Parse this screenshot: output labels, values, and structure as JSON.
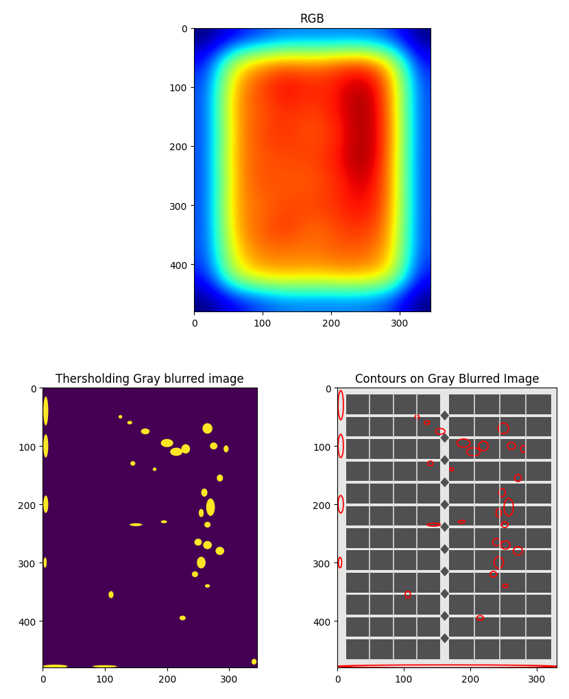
{
  "chart_data": [
    {
      "type": "heatmap",
      "title": "RGB",
      "xlim": [
        0,
        345
      ],
      "ylim": [
        480,
        0
      ],
      "xticks": [
        0,
        100,
        200,
        300
      ],
      "yticks": [
        0,
        100,
        200,
        300,
        400
      ],
      "cells": [
        [
          0.22,
          0.3,
          0.36,
          0.4,
          0.4,
          0.4,
          0.4,
          0.36,
          0.22
        ],
        [
          0.32,
          0.68,
          0.78,
          0.82,
          0.8,
          0.84,
          0.86,
          0.72,
          0.32
        ],
        [
          0.36,
          0.76,
          0.84,
          0.9,
          0.86,
          0.88,
          0.94,
          0.8,
          0.36
        ],
        [
          0.36,
          0.78,
          0.82,
          0.86,
          0.84,
          0.88,
          0.96,
          0.8,
          0.36
        ],
        [
          0.36,
          0.76,
          0.84,
          0.86,
          0.82,
          0.86,
          0.95,
          0.82,
          0.36
        ],
        [
          0.36,
          0.78,
          0.82,
          0.84,
          0.84,
          0.88,
          0.96,
          0.8,
          0.36
        ],
        [
          0.36,
          0.76,
          0.84,
          0.82,
          0.82,
          0.86,
          0.92,
          0.8,
          0.36
        ],
        [
          0.36,
          0.78,
          0.8,
          0.84,
          0.84,
          0.86,
          0.9,
          0.8,
          0.36
        ],
        [
          0.36,
          0.76,
          0.82,
          0.86,
          0.8,
          0.84,
          0.86,
          0.78,
          0.36
        ],
        [
          0.36,
          0.72,
          0.8,
          0.8,
          0.8,
          0.82,
          0.82,
          0.76,
          0.36
        ],
        [
          0.32,
          0.66,
          0.74,
          0.76,
          0.74,
          0.76,
          0.76,
          0.7,
          0.32
        ],
        [
          0.22,
          0.3,
          0.36,
          0.4,
          0.4,
          0.4,
          0.4,
          0.36,
          0.22
        ]
      ]
    },
    {
      "type": "binary_image",
      "title": "Thersholding Gray blurred image",
      "xlim": [
        0,
        345
      ],
      "ylim": [
        480,
        0
      ],
      "xticks": [
        0,
        100,
        200,
        300
      ],
      "yticks": [
        0,
        100,
        200,
        300,
        400
      ],
      "blobs": [
        [
          5,
          40,
          8,
          50
        ],
        [
          5,
          100,
          8,
          40
        ],
        [
          5,
          200,
          8,
          30
        ],
        [
          4,
          300,
          5,
          18
        ],
        [
          125,
          50,
          6,
          6
        ],
        [
          140,
          60,
          8,
          6
        ],
        [
          165,
          75,
          14,
          10
        ],
        [
          200,
          95,
          20,
          14
        ],
        [
          215,
          110,
          20,
          14
        ],
        [
          230,
          105,
          14,
          16
        ],
        [
          265,
          70,
          16,
          18
        ],
        [
          275,
          100,
          12,
          12
        ],
        [
          295,
          105,
          8,
          12
        ],
        [
          145,
          130,
          8,
          8
        ],
        [
          180,
          140,
          6,
          6
        ],
        [
          285,
          155,
          10,
          12
        ],
        [
          260,
          180,
          10,
          14
        ],
        [
          270,
          205,
          14,
          30
        ],
        [
          255,
          215,
          8,
          14
        ],
        [
          265,
          235,
          10,
          10
        ],
        [
          150,
          235,
          20,
          5
        ],
        [
          195,
          230,
          10,
          5
        ],
        [
          250,
          265,
          12,
          12
        ],
        [
          265,
          270,
          14,
          14
        ],
        [
          285,
          280,
          14,
          14
        ],
        [
          255,
          300,
          14,
          20
        ],
        [
          245,
          320,
          10,
          10
        ],
        [
          265,
          340,
          8,
          6
        ],
        [
          110,
          355,
          8,
          12
        ],
        [
          225,
          395,
          10,
          8
        ],
        [
          20,
          478,
          40,
          6
        ],
        [
          100,
          478,
          40,
          4
        ],
        [
          340,
          470,
          8,
          10
        ]
      ]
    },
    {
      "type": "contour_image",
      "title": "Contours on Gray Blurred Image",
      "xlim": [
        0,
        330
      ],
      "ylim": [
        480,
        0
      ],
      "xticks": [
        0,
        100,
        200,
        300
      ],
      "yticks": [
        0,
        100,
        200,
        300,
        400
      ],
      "contours": [
        [
          5,
          30,
          8,
          50
        ],
        [
          5,
          100,
          8,
          40
        ],
        [
          5,
          200,
          8,
          30
        ],
        [
          4,
          300,
          5,
          18
        ],
        [
          120,
          50,
          6,
          6
        ],
        [
          135,
          60,
          8,
          6
        ],
        [
          155,
          75,
          14,
          10
        ],
        [
          190,
          95,
          20,
          14
        ],
        [
          205,
          110,
          20,
          14
        ],
        [
          220,
          100,
          14,
          16
        ],
        [
          250,
          70,
          16,
          18
        ],
        [
          262,
          100,
          12,
          12
        ],
        [
          280,
          105,
          8,
          12
        ],
        [
          140,
          130,
          8,
          8
        ],
        [
          172,
          140,
          6,
          6
        ],
        [
          272,
          155,
          10,
          12
        ],
        [
          248,
          180,
          10,
          14
        ],
        [
          258,
          205,
          14,
          30
        ],
        [
          243,
          215,
          8,
          14
        ],
        [
          252,
          235,
          10,
          10
        ],
        [
          145,
          235,
          20,
          5
        ],
        [
          187,
          230,
          10,
          5
        ],
        [
          240,
          265,
          12,
          12
        ],
        [
          253,
          270,
          14,
          14
        ],
        [
          272,
          280,
          14,
          14
        ],
        [
          243,
          300,
          14,
          20
        ],
        [
          235,
          320,
          10,
          10
        ],
        [
          253,
          340,
          8,
          6
        ],
        [
          106,
          355,
          8,
          12
        ],
        [
          215,
          395,
          10,
          8
        ],
        [
          165,
          478,
          330,
          5
        ]
      ]
    }
  ]
}
